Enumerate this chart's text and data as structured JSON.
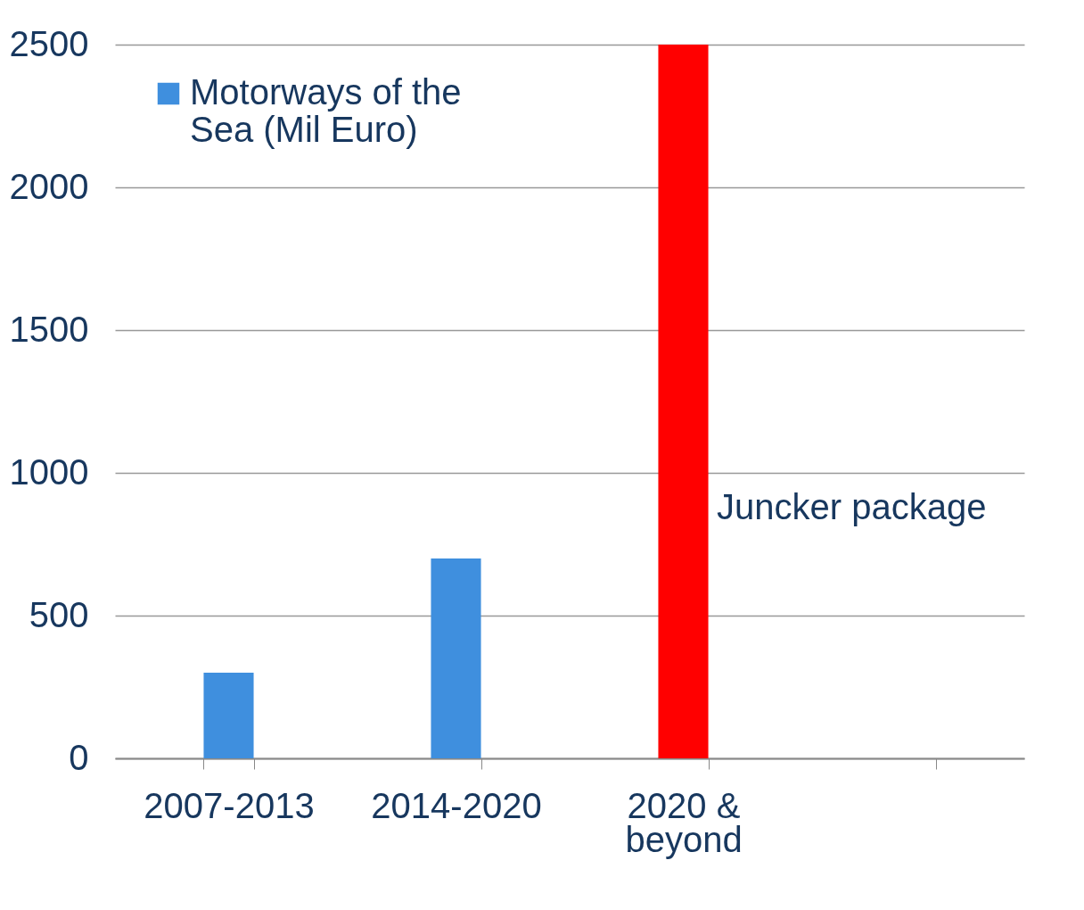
{
  "chart_data": {
    "type": "bar",
    "categories": [
      "2007-2013",
      "2014-2020",
      "2020 & beyond",
      null
    ],
    "series": [
      {
        "name": "Motorways of the Sea (Mil Euro)",
        "color": "#3f8fde",
        "values": [
          300,
          700,
          null,
          null
        ]
      },
      {
        "color": "#ff0000",
        "values": [
          null,
          null,
          2500,
          null
        ]
      }
    ],
    "ylim": [
      0,
      2500
    ],
    "yticks": [
      0,
      500,
      1000,
      1500,
      2000,
      2500
    ],
    "grid": "y",
    "legend": "top left",
    "annotations": [
      "Juncker package"
    ]
  }
}
